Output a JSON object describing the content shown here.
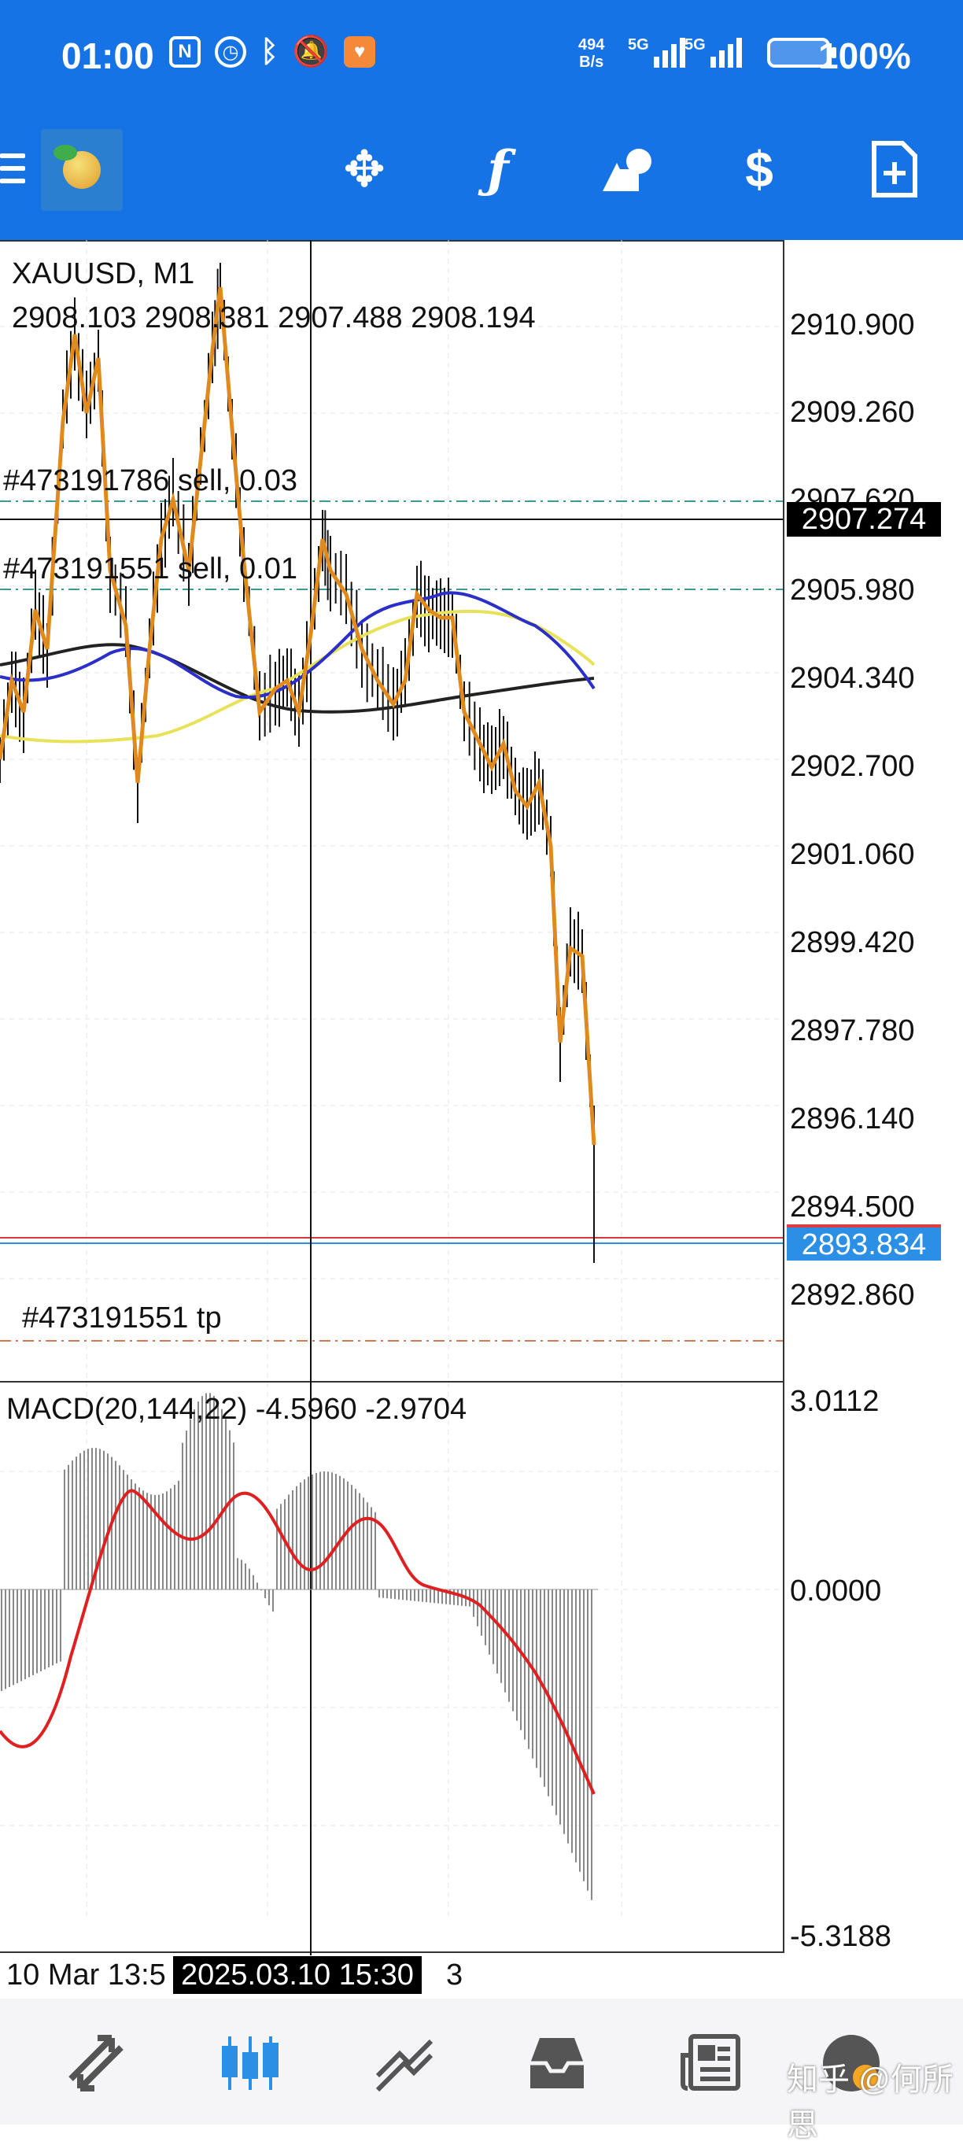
{
  "status_bar": {
    "time": "01:00",
    "net_speed_value": "494",
    "net_speed_unit": "B/s",
    "signal1_label": "5G",
    "signal2_label": "5G",
    "battery": "100%"
  },
  "toolbar": {
    "icons": [
      "menu-icon",
      "metatrader-logo",
      "crosshair-move-icon",
      "indicators-icon",
      "objects-icon",
      "trade-icon",
      "new-order-icon"
    ]
  },
  "chart": {
    "symbol": "XAUUSD, M1",
    "ohlc": "2908.103 2908.381 2907.488 2908.194",
    "order1": "#473191786 sell, 0.03",
    "order2": "#473191551 sell, 0.01",
    "tp_label": "#473191551 tp",
    "current_price": "2907.274",
    "bid_price": "2893.834",
    "price_axis": [
      "2910.900",
      "2909.260",
      "2907.620",
      "2905.980",
      "2904.340",
      "2902.700",
      "2901.060",
      "2899.420",
      "2897.780",
      "2896.140",
      "2894.500",
      "2892.860"
    ],
    "macd_label": "MACD(20,144,22) -4.5960 -2.9704",
    "macd_axis": [
      "3.0112",
      "0.0000",
      "-5.3188"
    ],
    "date_left": "10 Mar 13:5",
    "date_cursor": "2025.03.10 15:30",
    "date_right": "3"
  },
  "colors": {
    "accent": "#1673e6",
    "candle": "#000000",
    "ma_orange": "#e08a1e",
    "ma_blue": "#2a2fc7",
    "ma_yellow": "#e8e25a",
    "ma_black": "#222222",
    "macd_signal": "#e02020"
  },
  "bottom_nav": {
    "items": [
      "quotes-icon",
      "chart-icon",
      "trade-icon",
      "history-icon",
      "news-icon",
      "settings-icon"
    ]
  },
  "watermark": "知乎 @何所思"
}
